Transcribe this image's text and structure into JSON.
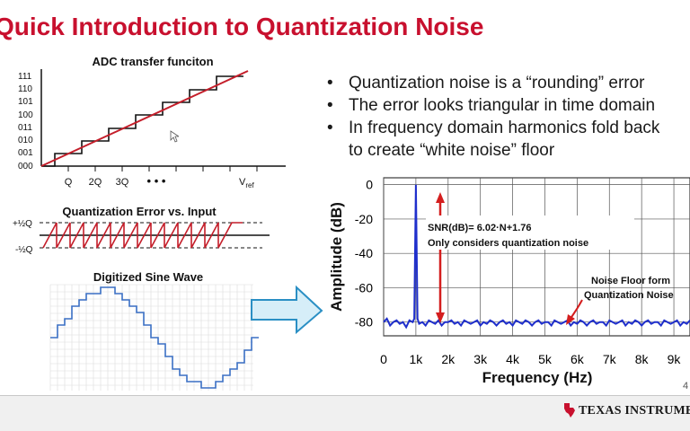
{
  "slide": {
    "title": "Quick Introduction to Quantization Noise",
    "page_number": "4"
  },
  "bullets": [
    "Quantization noise is a “rounding” error",
    "The error looks triangular in time domain",
    "In frequency domain harmonics fold back",
    "to create “white noise” floor"
  ],
  "adc_panel": {
    "title": "ADC transfer funciton",
    "codes": [
      "111",
      "110",
      "101",
      "100",
      "011",
      "010",
      "001",
      "000"
    ],
    "x_ticks": [
      "Q",
      "2Q",
      "3Q"
    ],
    "x_ellipsis": "• • •",
    "vref_label": "V",
    "vref_sub": "ref"
  },
  "error_panel": {
    "title": "Quantization Error vs. Input",
    "plus_label": "+½Q",
    "minus_label": "-½Q"
  },
  "sine_panel": {
    "title": "Digitized Sine Wave"
  },
  "chart_data": {
    "type": "line",
    "title": "",
    "xlabel": "Frequency (Hz)",
    "ylabel": "Amplitude (dB)",
    "x_ticks": [
      "0",
      "1k",
      "2k",
      "3k",
      "4k",
      "5k",
      "6k",
      "7k",
      "8k",
      "9k"
    ],
    "y_ticks": [
      "0",
      "-20",
      "-40",
      "-60",
      "-80"
    ],
    "xlim": [
      0,
      9500
    ],
    "ylim": [
      -88,
      4
    ],
    "grid": true,
    "series": [
      {
        "color": "#1f2fcc",
        "x": [
          0,
          100,
          200,
          300,
          400,
          500,
          600,
          700,
          800,
          900,
          950,
          1000,
          1050,
          1100,
          1200,
          1300,
          1400,
          1500,
          1600,
          1700,
          1800,
          1900,
          2000,
          2100,
          2200,
          2300,
          2400,
          2500,
          2600,
          2700,
          2800,
          2900,
          3000,
          3100,
          3200,
          3300,
          3400,
          3500,
          3600,
          3700,
          3800,
          3900,
          4000,
          4100,
          4200,
          4300,
          4400,
          4500,
          4600,
          4700,
          4800,
          4900,
          5000,
          5100,
          5200,
          5300,
          5400,
          5500,
          5600,
          5700,
          5800,
          5900,
          6000,
          6100,
          6200,
          6300,
          6400,
          6500,
          6600,
          6700,
          6800,
          6900,
          7000,
          7100,
          7200,
          7300,
          7400,
          7500,
          7600,
          7700,
          7800,
          7900,
          8000,
          8100,
          8200,
          8300,
          8400,
          8500,
          8600,
          8700,
          8800,
          8900,
          9000,
          9100,
          9200,
          9300,
          9400,
          9500
        ],
        "y": [
          -80,
          -78,
          -82,
          -80,
          -79,
          -81,
          -80,
          -83,
          -79,
          -80,
          -78,
          0,
          -78,
          -81,
          -80,
          -82,
          -79,
          -80,
          -81,
          -79,
          -82,
          -80,
          -80,
          -79,
          -81,
          -80,
          -82,
          -79,
          -80,
          -81,
          -80,
          -79,
          -82,
          -80,
          -81,
          -79,
          -80,
          -82,
          -80,
          -79,
          -81,
          -80,
          -82,
          -79,
          -80,
          -81,
          -79,
          -80,
          -82,
          -80,
          -79,
          -81,
          -80,
          -80,
          -82,
          -79,
          -80,
          -81,
          -80,
          -79,
          -82,
          -80,
          -81,
          -79,
          -80,
          -82,
          -80,
          -79,
          -81,
          -80,
          -80,
          -82,
          -79,
          -80,
          -81,
          -80,
          -79,
          -82,
          -80,
          -81,
          -79,
          -80,
          -82,
          -80,
          -79,
          -81,
          -80,
          -80,
          -82,
          -79,
          -80,
          -81,
          -80,
          -79,
          -82,
          -80,
          -81,
          -79
        ]
      }
    ],
    "annotations": [
      {
        "text": "SNR(dB)= 6.02·N+1.76"
      },
      {
        "text": "Only considers quantization noise"
      },
      {
        "text": "Noise Floor form"
      },
      {
        "text": "Quantization Noise"
      }
    ]
  },
  "footer": {
    "brand": "TEXAS INSTRUMENTS",
    "brand_color": "#c8102e"
  }
}
